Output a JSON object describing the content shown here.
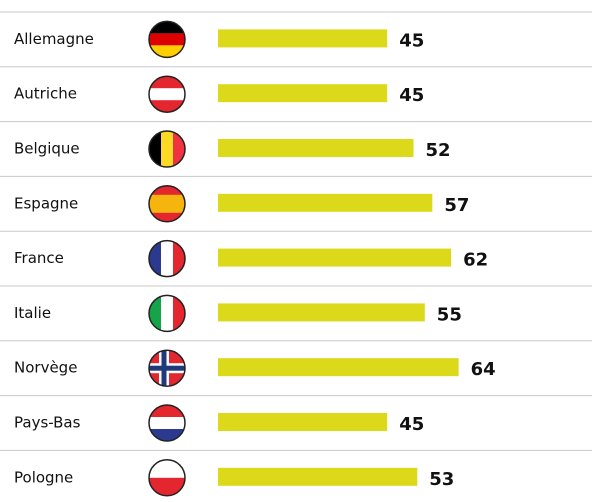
{
  "chart_data": {
    "type": "bar",
    "orientation": "horizontal",
    "categories": [
      "Allemagne",
      "Autriche",
      "Belgique",
      "Espagne",
      "France",
      "Italie",
      "Norvège",
      "Pays-Bas",
      "Pologne"
    ],
    "values": [
      45,
      45,
      52,
      57,
      62,
      55,
      64,
      45,
      53
    ],
    "color": "#dcd91a"
  }
}
